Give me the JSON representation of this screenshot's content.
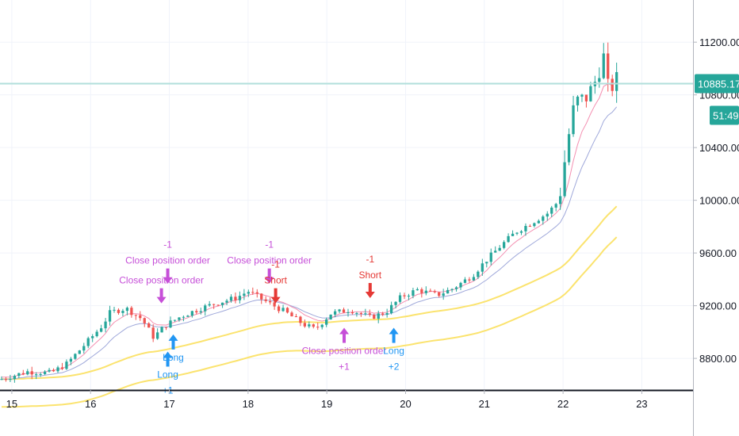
{
  "chart_data": {
    "type": "candlestick",
    "x_ticks": [
      "15",
      "16",
      "17",
      "18",
      "19",
      "20",
      "21",
      "22",
      "23"
    ],
    "y_ticks": [
      "8800.00",
      "9200.00",
      "9600.00",
      "10000.00",
      "10400.00",
      "10800.00",
      "11200.00"
    ],
    "ylim": [
      8560,
      11520
    ],
    "xlim": [
      14.85,
      23.65
    ],
    "current_price": {
      "label": "10885.17",
      "value": 10885.17,
      "countdown": "51:49"
    },
    "grid": true,
    "colors": {
      "up": "#26a69a",
      "down": "#ef5350",
      "ema_fast": "#f48fb1",
      "ema_mid": "#9fa8da",
      "band": "#fbe36e",
      "price_line": "#b2dfdb",
      "price_tag": "#26a69a",
      "buy": "#2196f3",
      "sell": "#e53935",
      "close": "#c64fd8"
    },
    "ohlc_keypoints": [
      [
        14.85,
        8640
      ],
      [
        15.2,
        8700
      ],
      [
        15.5,
        8690
      ],
      [
        15.7,
        8760
      ],
      [
        15.95,
        8920
      ],
      [
        16.15,
        9050
      ],
      [
        16.25,
        9150
      ],
      [
        16.45,
        9180
      ],
      [
        16.65,
        9100
      ],
      [
        16.8,
        8960
      ],
      [
        16.95,
        9050
      ],
      [
        17.15,
        9120
      ],
      [
        17.4,
        9180
      ],
      [
        17.6,
        9220
      ],
      [
        17.85,
        9260
      ],
      [
        18.0,
        9310
      ],
      [
        18.2,
        9240
      ],
      [
        18.45,
        9160
      ],
      [
        18.7,
        9060
      ],
      [
        18.85,
        9020
      ],
      [
        19.05,
        9140
      ],
      [
        19.3,
        9170
      ],
      [
        19.55,
        9110
      ],
      [
        19.75,
        9150
      ],
      [
        19.95,
        9270
      ],
      [
        20.15,
        9320
      ],
      [
        20.4,
        9280
      ],
      [
        20.6,
        9330
      ],
      [
        20.85,
        9430
      ],
      [
        21.0,
        9530
      ],
      [
        21.2,
        9650
      ],
      [
        21.4,
        9760
      ],
      [
        21.6,
        9830
      ],
      [
        21.8,
        9900
      ],
      [
        21.95,
        10000
      ],
      [
        22.05,
        10420
      ],
      [
        22.15,
        10750
      ],
      [
        22.3,
        10780
      ],
      [
        22.45,
        10950
      ],
      [
        22.5,
        11150
      ],
      [
        22.58,
        10820
      ],
      [
        22.68,
        10920
      ]
    ],
    "signals": [
      {
        "type": "close",
        "label": "Close position order",
        "qty": "-1",
        "x": 16.98,
        "price": 9350,
        "dir": "down"
      },
      {
        "type": "close",
        "label": "Close position order",
        "qty": "",
        "x": 16.9,
        "price": 9200,
        "dir": "down"
      },
      {
        "type": "buy",
        "label": "Long",
        "qty": "",
        "x": 17.05,
        "price": 9000,
        "dir": "up"
      },
      {
        "type": "buy",
        "label": "Long",
        "qty": "+1",
        "x": 16.98,
        "price": 8870,
        "dir": "up"
      },
      {
        "type": "close",
        "label": "Close position order",
        "qty": "-1",
        "x": 18.27,
        "price": 9350,
        "dir": "down"
      },
      {
        "type": "sell",
        "label": "Short",
        "qty": "-1",
        "x": 18.35,
        "price": 9200,
        "dir": "down"
      },
      {
        "type": "close",
        "label": "Close position order",
        "qty": "+1",
        "x": 19.22,
        "price": 9050,
        "dir": "up"
      },
      {
        "type": "sell",
        "label": "Short",
        "qty": "-1",
        "x": 19.55,
        "price": 9240,
        "dir": "down"
      },
      {
        "type": "buy",
        "label": "Long",
        "qty": "+2",
        "x": 19.85,
        "price": 9050,
        "dir": "up"
      }
    ]
  }
}
